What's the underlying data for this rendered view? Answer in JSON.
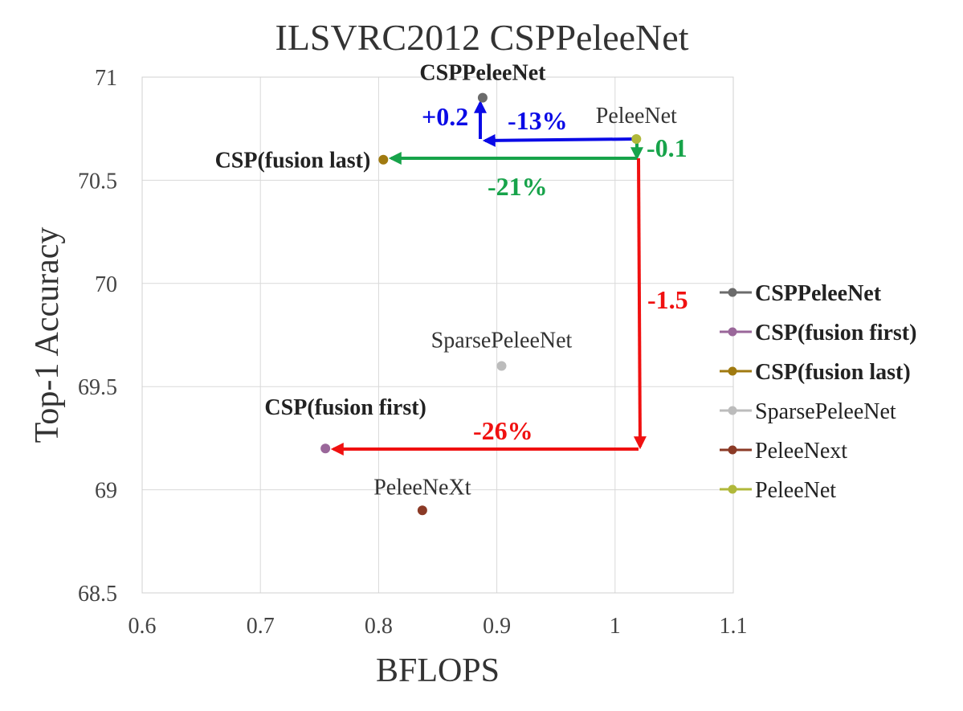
{
  "chart_data": {
    "type": "scatter",
    "title": "ILSVRC2012 CSPPeleeNet",
    "xlabel": "BFLOPS",
    "ylabel": "Top-1 Accuracy",
    "xlim": [
      0.6,
      1.1
    ],
    "ylim": [
      68.5,
      71
    ],
    "xticks": [
      "0.6",
      "0.7",
      "0.8",
      "0.9",
      "1",
      "1.1"
    ],
    "yticks": [
      "68.5",
      "69",
      "69.5",
      "70",
      "70.5",
      "71"
    ],
    "grid": true,
    "legend_position": "right",
    "series": [
      {
        "name": "CSPPeleeNet",
        "x": 0.888,
        "y": 70.9,
        "color": "#6b6b6b",
        "bold": true,
        "label": "CSPPeleeNet"
      },
      {
        "name": "CSP(fusion first)",
        "x": 0.755,
        "y": 69.2,
        "color": "#9a679a",
        "bold": true,
        "label": "CSP(fusion first)"
      },
      {
        "name": "CSP(fusion last)",
        "x": 0.804,
        "y": 70.6,
        "color": "#a07a10",
        "bold": true,
        "label": "CSP(fusion last)"
      },
      {
        "name": "SparsePeleeNet",
        "x": 0.904,
        "y": 69.6,
        "color": "#bcbcbc",
        "bold": false,
        "label": "SparsePeleeNet"
      },
      {
        "name": "PeleeNext",
        "x": 0.837,
        "y": 68.9,
        "color": "#8b3a26",
        "bold": false,
        "label": "PeleeNeXt"
      },
      {
        "name": "PeleeNet",
        "x": 1.018,
        "y": 70.7,
        "color": "#b0b83a",
        "bold": false,
        "label": "PeleeNet"
      }
    ],
    "annotations": [
      {
        "text": "+0.2",
        "color": "#0a0ae6"
      },
      {
        "text": "-13%",
        "color": "#0a0ae6"
      },
      {
        "text": "-0.1",
        "color": "#17a34a"
      },
      {
        "text": "-21%",
        "color": "#17a34a"
      },
      {
        "text": "-1.5",
        "color": "#f01010"
      },
      {
        "text": "-26%",
        "color": "#f01010"
      }
    ]
  }
}
